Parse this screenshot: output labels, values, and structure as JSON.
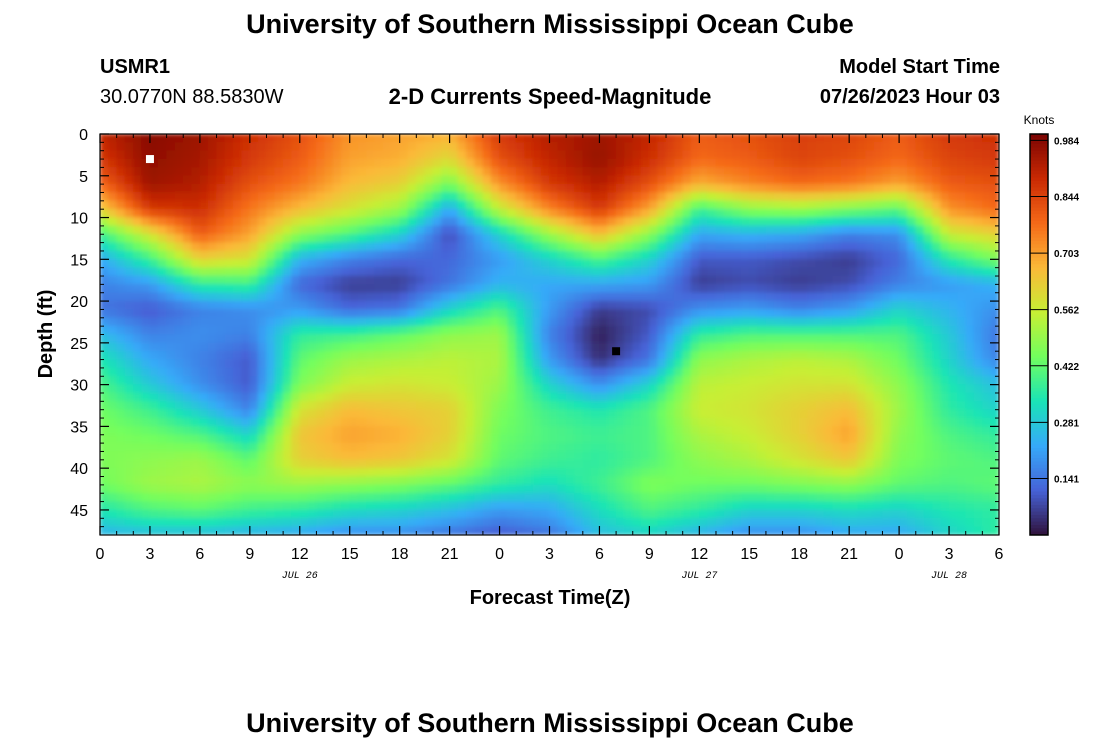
{
  "header": {
    "title": "University of Southern Mississippi Ocean Cube",
    "station_id": "USMR1",
    "station_coords": "30.0770N  88.5830W",
    "plot_title": "2-D Currents Speed-Magnitude",
    "model_start_label": "Model Start Time",
    "model_start_value": "07/26/2023 Hour 03"
  },
  "footer": {
    "title": "University of Southern Mississippi Ocean Cube"
  },
  "chart_data": {
    "type": "heatmap",
    "xlabel": "Forecast Time(Z)",
    "ylabel": "Depth (ft)",
    "x_ticks": [
      "0",
      "3",
      "6",
      "9",
      "12",
      "15",
      "18",
      "21",
      "0",
      "3",
      "6",
      "9",
      "12",
      "15",
      "18",
      "21",
      "0",
      "3",
      "6"
    ],
    "x_range_hours": [
      0,
      54
    ],
    "date_labels": [
      {
        "hour": 12,
        "label": "JUL 26"
      },
      {
        "hour": 36,
        "label": "JUL 27"
      },
      {
        "hour": 51,
        "label": "JUL 28"
      }
    ],
    "y_ticks": [
      0,
      5,
      10,
      15,
      20,
      25,
      30,
      35,
      40,
      45
    ],
    "y_range": [
      0,
      48
    ],
    "y_inverted": true,
    "colorbar": {
      "title": "Knots",
      "ticks": [
        "0.984",
        "0.844",
        "0.703",
        "0.562",
        "0.422",
        "0.281",
        "0.141"
      ],
      "range": [
        0,
        1.0
      ],
      "colors": [
        "#30123b",
        "#4662d7",
        "#36aaf9",
        "#1ae4b6",
        "#72fe5e",
        "#c7ef34",
        "#fbb938",
        "#f56918",
        "#c92903",
        "#7a0403"
      ]
    },
    "depths": [
      0,
      3,
      6,
      9,
      12,
      15,
      18,
      21,
      24,
      27,
      30,
      33,
      36,
      39,
      42,
      45,
      48
    ],
    "hours": [
      0,
      3,
      6,
      9,
      12,
      15,
      18,
      21,
      24,
      27,
      30,
      33,
      36,
      39,
      42,
      45,
      48,
      51,
      54
    ],
    "speed": [
      [
        0.9,
        0.98,
        0.95,
        0.88,
        0.82,
        0.72,
        0.7,
        0.68,
        0.86,
        0.92,
        0.95,
        0.9,
        0.8,
        0.82,
        0.85,
        0.84,
        0.8,
        0.86,
        0.88
      ],
      [
        0.86,
        0.97,
        0.94,
        0.86,
        0.8,
        0.7,
        0.68,
        0.6,
        0.82,
        0.9,
        0.96,
        0.88,
        0.78,
        0.8,
        0.84,
        0.82,
        0.78,
        0.84,
        0.86
      ],
      [
        0.78,
        0.95,
        0.92,
        0.82,
        0.76,
        0.66,
        0.62,
        0.45,
        0.72,
        0.86,
        0.92,
        0.82,
        0.68,
        0.74,
        0.78,
        0.76,
        0.7,
        0.8,
        0.82
      ],
      [
        0.62,
        0.86,
        0.88,
        0.76,
        0.66,
        0.58,
        0.5,
        0.22,
        0.55,
        0.74,
        0.86,
        0.7,
        0.38,
        0.48,
        0.5,
        0.46,
        0.42,
        0.72,
        0.78
      ],
      [
        0.38,
        0.58,
        0.8,
        0.7,
        0.48,
        0.4,
        0.3,
        0.08,
        0.3,
        0.5,
        0.66,
        0.48,
        0.22,
        0.24,
        0.22,
        0.16,
        0.18,
        0.56,
        0.62
      ],
      [
        0.22,
        0.38,
        0.62,
        0.58,
        0.24,
        0.16,
        0.12,
        0.12,
        0.2,
        0.3,
        0.4,
        0.3,
        0.1,
        0.1,
        0.08,
        0.06,
        0.12,
        0.35,
        0.46
      ],
      [
        0.16,
        0.2,
        0.36,
        0.38,
        0.12,
        0.06,
        0.06,
        0.14,
        0.24,
        0.22,
        0.22,
        0.2,
        0.06,
        0.08,
        0.06,
        0.08,
        0.16,
        0.2,
        0.24
      ],
      [
        0.14,
        0.1,
        0.16,
        0.18,
        0.2,
        0.12,
        0.14,
        0.3,
        0.4,
        0.2,
        0.06,
        0.08,
        0.18,
        0.2,
        0.16,
        0.2,
        0.3,
        0.24,
        0.18
      ],
      [
        0.26,
        0.16,
        0.18,
        0.16,
        0.36,
        0.38,
        0.42,
        0.48,
        0.5,
        0.16,
        0.02,
        0.1,
        0.36,
        0.4,
        0.4,
        0.4,
        0.4,
        0.28,
        0.14
      ],
      [
        0.34,
        0.22,
        0.16,
        0.1,
        0.42,
        0.5,
        0.52,
        0.54,
        0.52,
        0.2,
        0.04,
        0.14,
        0.48,
        0.52,
        0.54,
        0.52,
        0.44,
        0.3,
        0.16
      ],
      [
        0.4,
        0.28,
        0.18,
        0.1,
        0.46,
        0.56,
        0.58,
        0.56,
        0.5,
        0.3,
        0.18,
        0.3,
        0.54,
        0.56,
        0.58,
        0.58,
        0.48,
        0.34,
        0.26
      ],
      [
        0.44,
        0.38,
        0.28,
        0.16,
        0.58,
        0.66,
        0.64,
        0.62,
        0.46,
        0.38,
        0.34,
        0.4,
        0.56,
        0.58,
        0.62,
        0.66,
        0.5,
        0.36,
        0.3
      ],
      [
        0.46,
        0.44,
        0.4,
        0.3,
        0.64,
        0.7,
        0.68,
        0.62,
        0.44,
        0.4,
        0.38,
        0.4,
        0.52,
        0.56,
        0.62,
        0.7,
        0.48,
        0.4,
        0.36
      ],
      [
        0.46,
        0.48,
        0.5,
        0.42,
        0.62,
        0.66,
        0.64,
        0.58,
        0.42,
        0.38,
        0.36,
        0.4,
        0.48,
        0.52,
        0.58,
        0.64,
        0.46,
        0.42,
        0.4
      ],
      [
        0.44,
        0.5,
        0.52,
        0.48,
        0.5,
        0.48,
        0.46,
        0.42,
        0.36,
        0.32,
        0.38,
        0.46,
        0.44,
        0.44,
        0.46,
        0.48,
        0.42,
        0.4,
        0.42
      ],
      [
        0.34,
        0.4,
        0.42,
        0.38,
        0.36,
        0.32,
        0.3,
        0.26,
        0.2,
        0.22,
        0.32,
        0.4,
        0.36,
        0.3,
        0.3,
        0.32,
        0.3,
        0.34,
        0.36
      ],
      [
        0.24,
        0.26,
        0.26,
        0.24,
        0.22,
        0.18,
        0.18,
        0.14,
        0.1,
        0.14,
        0.26,
        0.3,
        0.24,
        0.18,
        0.18,
        0.22,
        0.22,
        0.3,
        0.36
      ]
    ],
    "markers": [
      {
        "hour": 3,
        "depth": 3,
        "color": "#ffffff"
      },
      {
        "hour": 31,
        "depth": 26,
        "color": "#000000"
      }
    ]
  }
}
